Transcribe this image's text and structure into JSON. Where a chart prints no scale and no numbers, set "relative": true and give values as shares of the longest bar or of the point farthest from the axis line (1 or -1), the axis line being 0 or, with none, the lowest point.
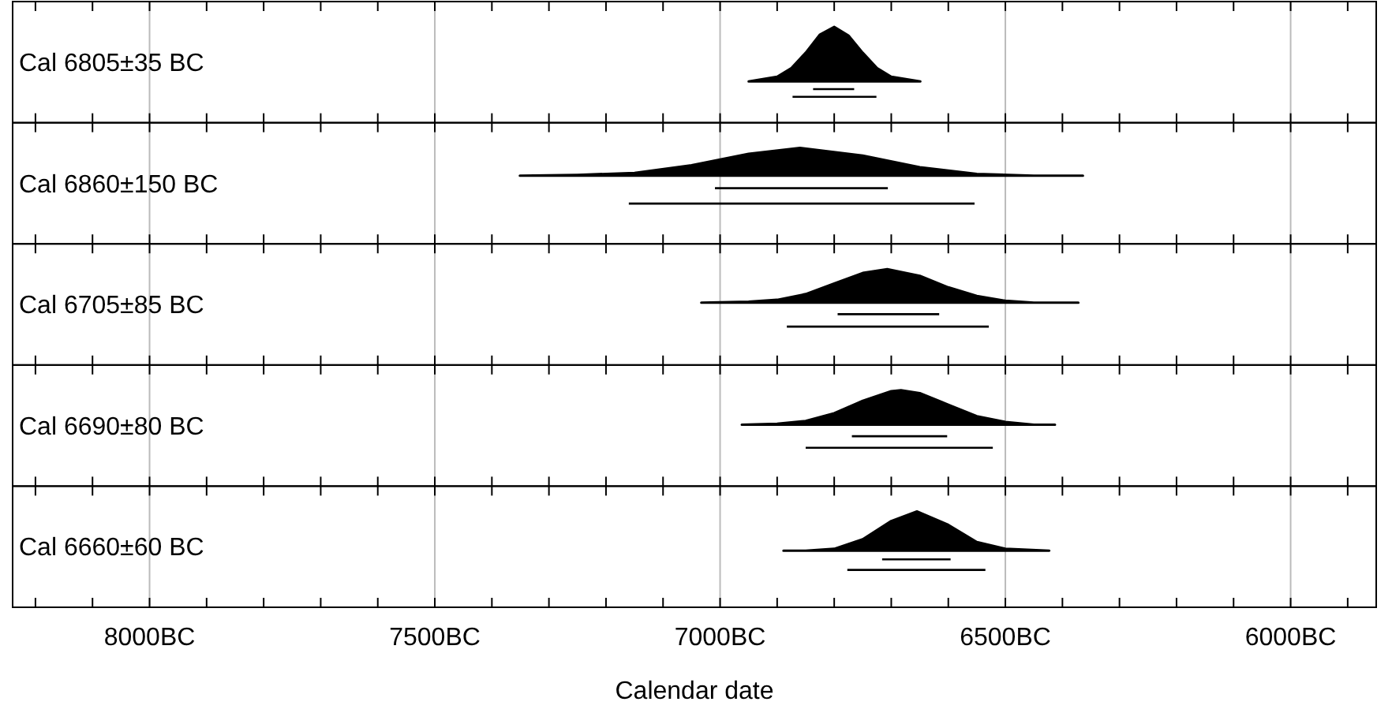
{
  "chart_data": [
    {
      "type": "area",
      "title": "Cal 6805±35 BC",
      "relative": true,
      "xlim": [
        8240,
        5850
      ],
      "grid": "x",
      "tick_labels": false,
      "marker": "none",
      "xticks": [
        {
          "value": 8200,
          "label": null
        },
        {
          "value": 8100,
          "label": null
        },
        8000,
        {
          "value": 7900,
          "label": null
        },
        {
          "value": 7800,
          "label": null
        },
        {
          "value": 7700,
          "label": null
        },
        {
          "value": 7600,
          "label": null
        },
        7500,
        {
          "value": 7400,
          "label": null
        },
        {
          "value": 7300,
          "label": null
        },
        {
          "value": 7200,
          "label": null
        },
        {
          "value": 7100,
          "label": null
        },
        7000,
        {
          "value": 6900,
          "label": null
        },
        {
          "value": 6800,
          "label": null
        },
        {
          "value": 6700,
          "label": null
        },
        {
          "value": 6600,
          "label": null
        },
        6500,
        {
          "value": 6400,
          "label": null
        },
        {
          "value": 6300,
          "label": null
        },
        {
          "value": 6200,
          "label": null
        },
        {
          "value": 6100,
          "label": null
        },
        6000,
        {
          "value": 5900,
          "label": null
        }
      ],
      "series": [
        {
          "color": "#000000",
          "x": [
            6950,
            6900,
            6875,
            6850,
            6825,
            6800,
            6775,
            6750,
            6725,
            6700,
            6649
          ],
          "values": [
            0.43,
            0.48,
            0.57,
            0.73,
            0.92,
            1,
            0.91,
            0.73,
            0.57,
            0.48,
            0.43
          ]
        },
        {
          "type": "line",
          "color": "#000000",
          "x": [
            6837,
            6765
          ],
          "values": [
            0.35,
            0.35
          ]
        },
        {
          "type": "line",
          "color": "#000000",
          "x": [
            6873,
            6726
          ],
          "values": [
            0.27,
            0.27
          ]
        }
      ]
    },
    {
      "type": "area",
      "title": "Cal 6860±150 BC",
      "relative": true,
      "xlim": [
        8240,
        5850
      ],
      "grid": "x",
      "tick_labels": false,
      "marker": "none",
      "xticks": [
        {
          "value": 8200,
          "label": null
        },
        {
          "value": 8100,
          "label": null
        },
        8000,
        {
          "value": 7900,
          "label": null
        },
        {
          "value": 7800,
          "label": null
        },
        {
          "value": 7700,
          "label": null
        },
        {
          "value": 7600,
          "label": null
        },
        7500,
        {
          "value": 7400,
          "label": null
        },
        {
          "value": 7300,
          "label": null
        },
        {
          "value": 7200,
          "label": null
        },
        {
          "value": 7100,
          "label": null
        },
        7000,
        {
          "value": 6900,
          "label": null
        },
        {
          "value": 6800,
          "label": null
        },
        {
          "value": 6700,
          "label": null
        },
        {
          "value": 6600,
          "label": null
        },
        6500,
        {
          "value": 6400,
          "label": null
        },
        {
          "value": 6300,
          "label": null
        },
        {
          "value": 6200,
          "label": null
        },
        {
          "value": 6100,
          "label": null
        },
        6000,
        {
          "value": 5900,
          "label": null
        }
      ],
      "series": [
        {
          "color": "#000000",
          "x": [
            7351,
            7250,
            7150,
            7050,
            6950,
            6860,
            6750,
            6650,
            6550,
            6450,
            6364
          ],
          "values": [
            0.71,
            0.72,
            0.74,
            0.82,
            0.94,
            1,
            0.92,
            0.8,
            0.73,
            0.71,
            0.71
          ]
        },
        {
          "type": "line",
          "color": "#000000",
          "x": [
            7009,
            6706
          ],
          "values": [
            0.58,
            0.58
          ]
        },
        {
          "type": "line",
          "color": "#000000",
          "x": [
            7160,
            6554
          ],
          "values": [
            0.42,
            0.42
          ]
        }
      ]
    },
    {
      "type": "area",
      "title": "Cal 6705±85 BC",
      "relative": true,
      "xlim": [
        8240,
        5850
      ],
      "grid": "x",
      "tick_labels": false,
      "marker": "none",
      "xticks": [
        {
          "value": 8200,
          "label": null
        },
        {
          "value": 8100,
          "label": null
        },
        8000,
        {
          "value": 7900,
          "label": null
        },
        {
          "value": 7800,
          "label": null
        },
        {
          "value": 7700,
          "label": null
        },
        {
          "value": 7600,
          "label": null
        },
        7500,
        {
          "value": 7400,
          "label": null
        },
        {
          "value": 7300,
          "label": null
        },
        {
          "value": 7200,
          "label": null
        },
        {
          "value": 7100,
          "label": null
        },
        7000,
        {
          "value": 6900,
          "label": null
        },
        {
          "value": 6800,
          "label": null
        },
        {
          "value": 6700,
          "label": null
        },
        {
          "value": 6600,
          "label": null
        },
        6500,
        {
          "value": 6400,
          "label": null
        },
        {
          "value": 6300,
          "label": null
        },
        {
          "value": 6200,
          "label": null
        },
        {
          "value": 6100,
          "label": null
        },
        6000,
        {
          "value": 5900,
          "label": null
        }
      ],
      "series": [
        {
          "color": "#000000",
          "x": [
            7033,
            6950,
            6900,
            6850,
            6800,
            6750,
            6707,
            6650,
            6600,
            6550,
            6500,
            6450,
            6372
          ],
          "values": [
            0.65,
            0.66,
            0.68,
            0.74,
            0.85,
            0.96,
            1,
            0.93,
            0.81,
            0.72,
            0.67,
            0.65,
            0.65
          ]
        },
        {
          "type": "line",
          "color": "#000000",
          "x": [
            6794,
            6616
          ],
          "values": [
            0.53,
            0.53
          ]
        },
        {
          "type": "line",
          "color": "#000000",
          "x": [
            6883,
            6529
          ],
          "values": [
            0.4,
            0.4
          ]
        }
      ]
    },
    {
      "type": "area",
      "title": "Cal 6690±80 BC",
      "relative": true,
      "xlim": [
        8240,
        5850
      ],
      "grid": "x",
      "tick_labels": false,
      "marker": "none",
      "xticks": [
        {
          "value": 8200,
          "label": null
        },
        {
          "value": 8100,
          "label": null
        },
        8000,
        {
          "value": 7900,
          "label": null
        },
        {
          "value": 7800,
          "label": null
        },
        {
          "value": 7700,
          "label": null
        },
        {
          "value": 7600,
          "label": null
        },
        7500,
        {
          "value": 7400,
          "label": null
        },
        {
          "value": 7300,
          "label": null
        },
        {
          "value": 7200,
          "label": null
        },
        {
          "value": 7100,
          "label": null
        },
        7000,
        {
          "value": 6900,
          "label": null
        },
        {
          "value": 6800,
          "label": null
        },
        {
          "value": 6700,
          "label": null
        },
        {
          "value": 6600,
          "label": null
        },
        6500,
        {
          "value": 6400,
          "label": null
        },
        {
          "value": 6300,
          "label": null
        },
        {
          "value": 6200,
          "label": null
        },
        {
          "value": 6100,
          "label": null
        },
        6000,
        {
          "value": 5900,
          "label": null
        }
      ],
      "series": [
        {
          "color": "#000000",
          "x": [
            6962,
            6900,
            6850,
            6800,
            6750,
            6700,
            6683,
            6650,
            6600,
            6550,
            6500,
            6450,
            6413
          ],
          "values": [
            0.64,
            0.65,
            0.68,
            0.76,
            0.89,
            0.99,
            1,
            0.97,
            0.85,
            0.73,
            0.67,
            0.64,
            0.64
          ]
        },
        {
          "type": "line",
          "color": "#000000",
          "x": [
            6769,
            6602
          ],
          "values": [
            0.52,
            0.52
          ]
        },
        {
          "type": "line",
          "color": "#000000",
          "x": [
            6850,
            6522
          ],
          "values": [
            0.4,
            0.4
          ]
        }
      ]
    },
    {
      "type": "area",
      "title": "Cal 6660±60 BC",
      "xlabel": "Calendar date",
      "relative": true,
      "xlim": [
        8240,
        5850
      ],
      "grid": "x",
      "tick_labels": "x",
      "marker": "none",
      "xticks": [
        {
          "value": 8200,
          "label": null
        },
        {
          "value": 8100,
          "label": null
        },
        {
          "value": 8000,
          "label": "8000BC"
        },
        {
          "value": 7900,
          "label": null
        },
        {
          "value": 7800,
          "label": null
        },
        {
          "value": 7700,
          "label": null
        },
        {
          "value": 7600,
          "label": null
        },
        {
          "value": 7500,
          "label": "7500BC"
        },
        {
          "value": 7400,
          "label": null
        },
        {
          "value": 7300,
          "label": null
        },
        {
          "value": 7200,
          "label": null
        },
        {
          "value": 7100,
          "label": null
        },
        {
          "value": 7000,
          "label": "7000BC"
        },
        {
          "value": 6900,
          "label": null
        },
        {
          "value": 6800,
          "label": null
        },
        {
          "value": 6700,
          "label": null
        },
        {
          "value": 6600,
          "label": null
        },
        {
          "value": 6500,
          "label": "6500BC"
        },
        {
          "value": 6400,
          "label": null
        },
        {
          "value": 6300,
          "label": null
        },
        {
          "value": 6200,
          "label": null
        },
        {
          "value": 6100,
          "label": null
        },
        {
          "value": 6000,
          "label": "6000BC"
        },
        {
          "value": 5900,
          "label": null
        }
      ],
      "series": [
        {
          "color": "#000000",
          "x": [
            6889,
            6850,
            6800,
            6750,
            6700,
            6655,
            6600,
            6550,
            6500,
            6423
          ],
          "values": [
            0.59,
            0.59,
            0.61,
            0.71,
            0.9,
            1,
            0.86,
            0.68,
            0.61,
            0.59
          ]
        },
        {
          "type": "line",
          "color": "#000000",
          "x": [
            6716,
            6596
          ],
          "values": [
            0.5,
            0.5
          ]
        },
        {
          "type": "line",
          "color": "#000000",
          "x": [
            6777,
            6535
          ],
          "values": [
            0.39,
            0.39
          ]
        }
      ]
    }
  ]
}
